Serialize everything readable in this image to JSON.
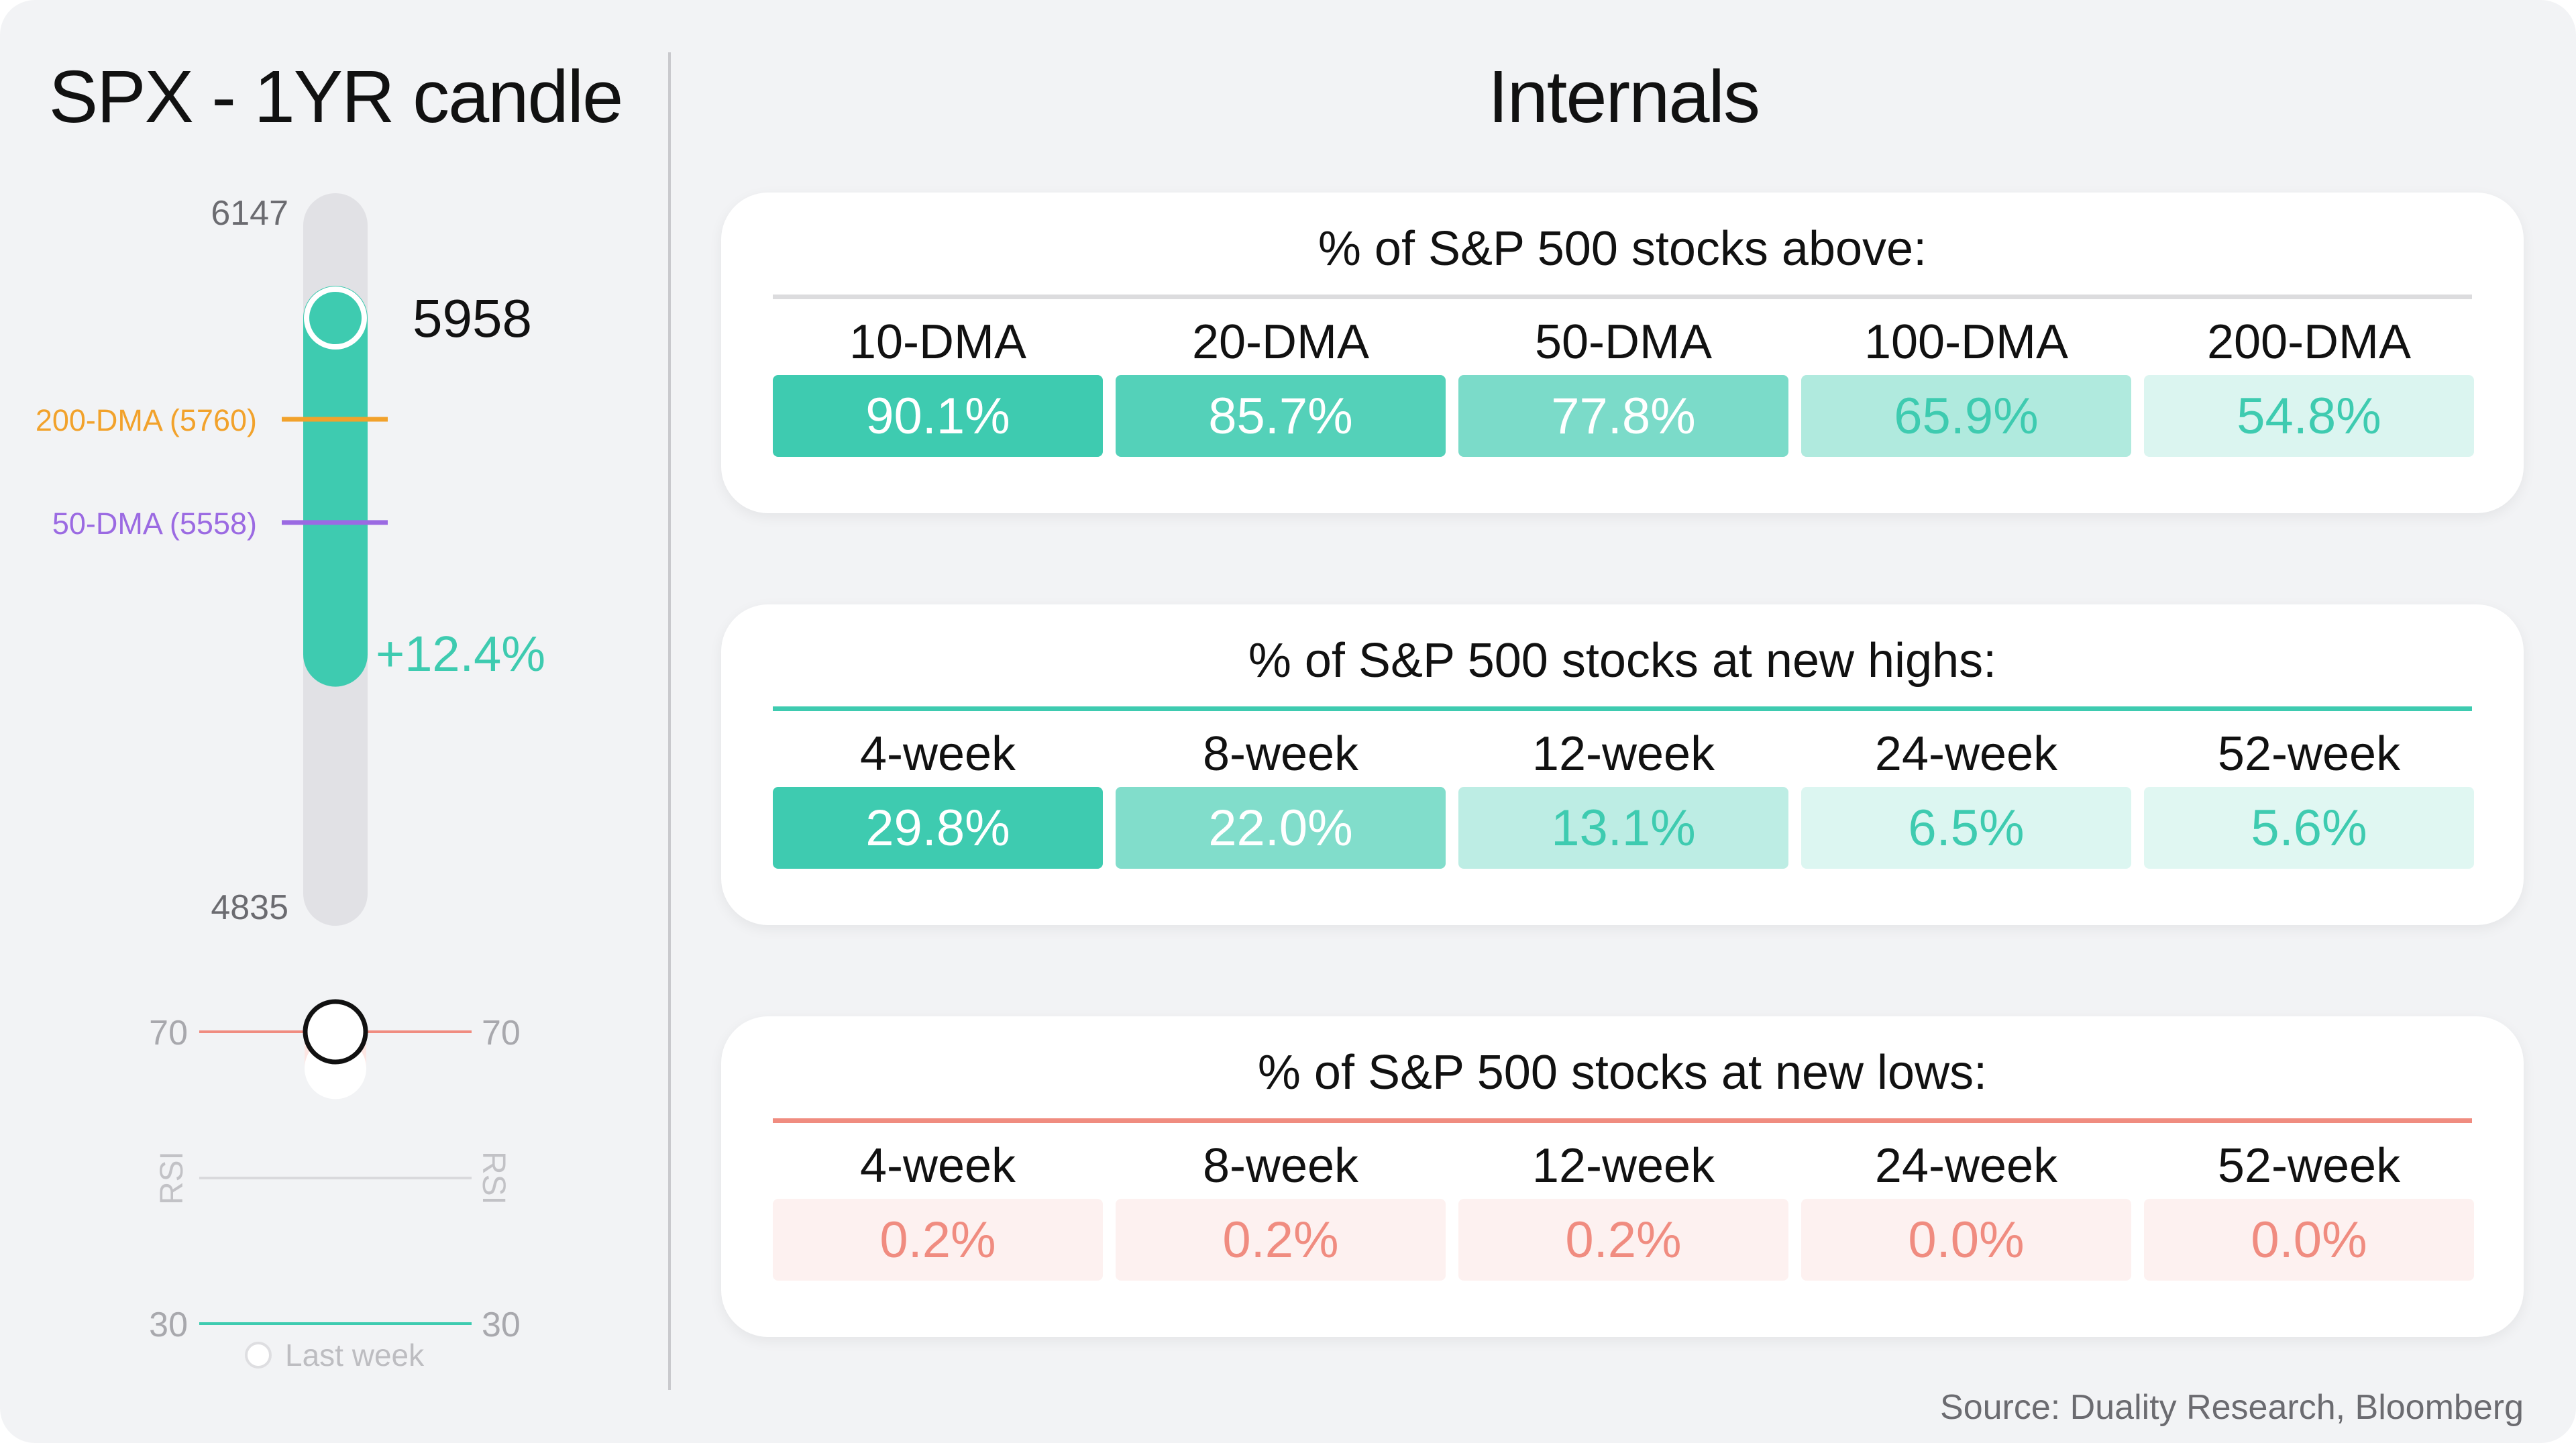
{
  "left_panel": {
    "title": "SPX - 1YR candle",
    "range_high": "6147",
    "range_low": "4835",
    "current_value": "5958",
    "change": "+12.4%",
    "dma_200_label": "200-DMA (5760)",
    "dma_50_label": "50-DMA (5558)",
    "rsi": {
      "upper": "70",
      "lower": "30",
      "axis_label": "RSI",
      "legend": "Last week"
    }
  },
  "right_panel": {
    "title": "Internals"
  },
  "source": "Source: Duality Research, Bloomberg",
  "colors": {
    "candle": "#3ecbb0",
    "dma_200": "#f2a22b",
    "dma_50": "#9b6ae2",
    "rsi_upper": "#f08c80",
    "rsi_lower": "#3ecbb0",
    "teal_rule": "#3ecbb0",
    "red_rule": "#f08c80",
    "gray_rule": "#dcdcde"
  },
  "chart_data": [
    {
      "type": "bar",
      "title": "SPX - 1YR candle",
      "ylim": [
        4835,
        6147
      ],
      "current": 5958,
      "open_estimate": 5300,
      "change_pct": 12.4,
      "reference_lines": [
        {
          "name": "200-DMA",
          "value": 5760
        },
        {
          "name": "50-DMA",
          "value": 5558
        }
      ],
      "rsi": {
        "ylim": [
          30,
          70
        ],
        "current": 70,
        "last_week": 65
      }
    },
    {
      "type": "table",
      "title": "% of S&P 500 stocks above:",
      "categories": [
        "10-DMA",
        "20-DMA",
        "50-DMA",
        "100-DMA",
        "200-DMA"
      ],
      "values": [
        90.1,
        85.7,
        77.8,
        65.9,
        54.8
      ],
      "labels": [
        "90.1%",
        "85.7%",
        "77.8%",
        "65.9%",
        "54.8%"
      ]
    },
    {
      "type": "table",
      "title": "% of S&P 500 stocks at new highs:",
      "categories": [
        "4-week",
        "8-week",
        "12-week",
        "24-week",
        "52-week"
      ],
      "values": [
        29.8,
        22.0,
        13.1,
        6.5,
        5.6
      ],
      "labels": [
        "29.8%",
        "22.0%",
        "13.1%",
        "6.5%",
        "5.6%"
      ]
    },
    {
      "type": "table",
      "title": "% of S&P 500 stocks at new lows:",
      "categories": [
        "4-week",
        "8-week",
        "12-week",
        "24-week",
        "52-week"
      ],
      "values": [
        0.2,
        0.2,
        0.2,
        0.0,
        0.0
      ],
      "labels": [
        "0.2%",
        "0.2%",
        "0.2%",
        "0.0%",
        "0.0%"
      ]
    }
  ]
}
